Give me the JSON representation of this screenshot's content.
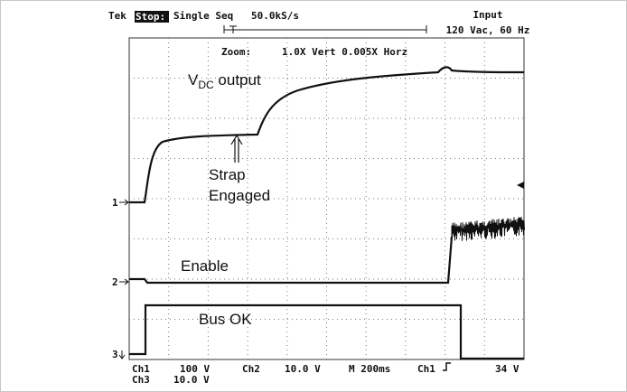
{
  "header": {
    "brand": "Tek",
    "status": "Stop:",
    "mode": "Single Seq",
    "rate": "50.0kS/s",
    "input_title": "Input",
    "input_value": "120 Vac, 60 Hz"
  },
  "zoom": {
    "label": "Zoom:",
    "value": "1.0X Vert 0.005X Horz"
  },
  "annotations": {
    "vdc_main": "V",
    "vdc_sub": "DC",
    "vdc_rest": " output",
    "strap": "Strap",
    "engaged": "Engaged",
    "enable": "Enable",
    "bus_ok": "Bus OK"
  },
  "channels": [
    "1",
    "2",
    "3"
  ],
  "footer": {
    "row1": [
      "Ch1",
      "100 V",
      "Ch2",
      "10.0 V",
      "M 200ms",
      "Ch1",
      "34 V"
    ],
    "row2": [
      "Ch3",
      "10.0 V"
    ]
  }
}
